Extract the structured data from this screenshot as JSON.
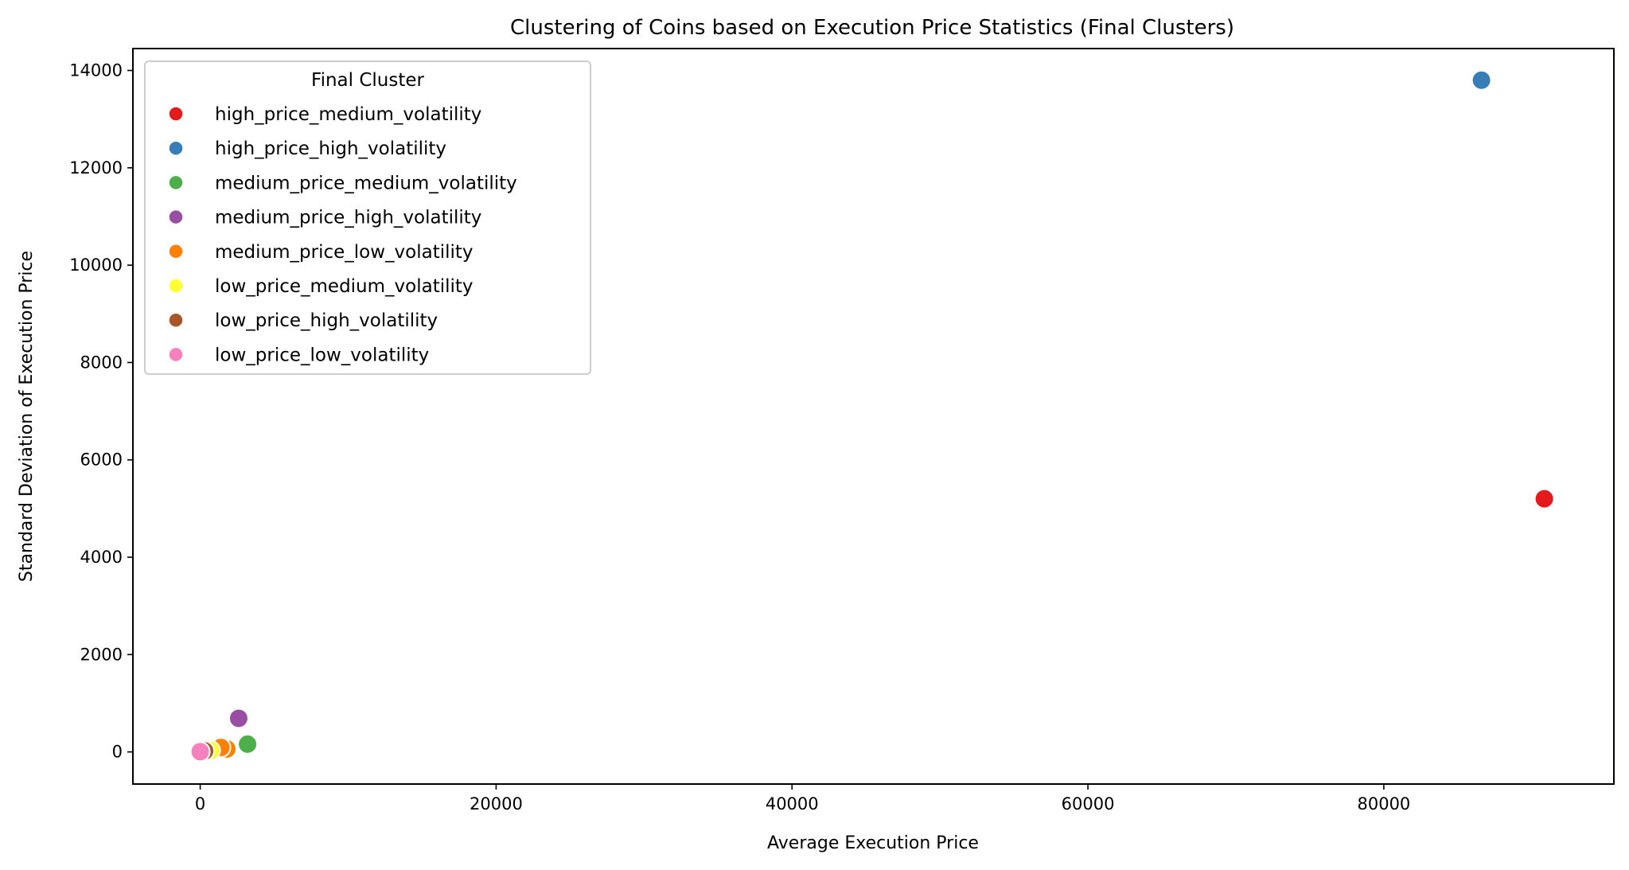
{
  "chart_data": {
    "type": "scatter",
    "title": "Clustering of Coins based on Execution Price Statistics (Final Clusters)",
    "xlabel": "Average Execution Price",
    "ylabel": "Standard Deviation of Execution Price",
    "xlim": [
      -4550,
      95550
    ],
    "ylim": [
      -660,
      14450
    ],
    "xticks": [
      0,
      20000,
      40000,
      60000,
      80000
    ],
    "yticks": [
      0,
      2000,
      4000,
      6000,
      8000,
      10000,
      12000,
      14000
    ],
    "grid": false,
    "legend": {
      "title": "Final Cluster",
      "placement": "upper left"
    },
    "series": [
      {
        "name": "high_price_medium_volatility",
        "color": "#e41a1c",
        "points": [
          [
            90850,
            5200
          ]
        ]
      },
      {
        "name": "high_price_high_volatility",
        "color": "#377eb8",
        "points": [
          [
            86600,
            13800
          ]
        ]
      },
      {
        "name": "medium_price_medium_volatility",
        "color": "#4daf4a",
        "points": [
          [
            3200,
            160
          ]
        ]
      },
      {
        "name": "medium_price_high_volatility",
        "color": "#984ea3",
        "points": [
          [
            2600,
            690
          ]
        ]
      },
      {
        "name": "medium_price_low_volatility",
        "color": "#ff7f00",
        "points": [
          [
            1800,
            60
          ],
          [
            1400,
            90
          ]
        ]
      },
      {
        "name": "low_price_medium_volatility",
        "color": "#ffff33",
        "points": [
          [
            700,
            30
          ]
        ]
      },
      {
        "name": "low_price_high_volatility",
        "color": "#a65628",
        "points": [
          [
            300,
            20
          ]
        ]
      },
      {
        "name": "low_price_low_volatility",
        "color": "#f781bf",
        "points": [
          [
            0,
            5
          ]
        ]
      }
    ]
  }
}
